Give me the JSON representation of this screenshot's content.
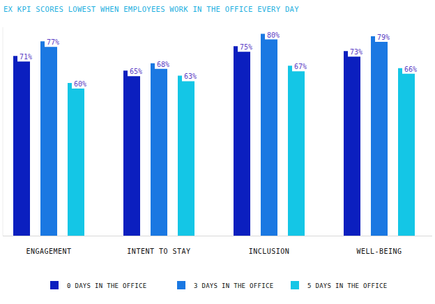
{
  "chart_data": {
    "type": "bar",
    "title": "EX KPI SCORES LOWEST WHEN EMPLOYEES WORK IN THE OFFICE EVERY DAY",
    "categories": [
      "ENGAGEMENT",
      "INTENT TO STAY",
      "INCLUSION",
      "WELL-BEING"
    ],
    "series": [
      {
        "name": "0 DAYS IN THE OFFICE",
        "color": "#0b1fbf",
        "values": [
          71,
          65,
          75,
          73
        ],
        "value_labels": [
          "71%",
          "65%",
          "75%",
          "73%"
        ]
      },
      {
        "name": "3 DAYS IN THE OFFICE",
        "color": "#1a78e2",
        "values": [
          77,
          68,
          80,
          79
        ],
        "value_labels": [
          "77%",
          "68%",
          "80%",
          "79%"
        ]
      },
      {
        "name": "5 DAYS IN THE OFFICE",
        "color": "#14c6e6",
        "values": [
          60,
          63,
          67,
          66
        ],
        "value_labels": [
          "60%",
          "63%",
          "67%",
          "66%"
        ]
      }
    ],
    "ylim": [
      0,
      85
    ],
    "grid": false,
    "tick_labels": false,
    "data_labels": true,
    "legend": "bottom"
  }
}
